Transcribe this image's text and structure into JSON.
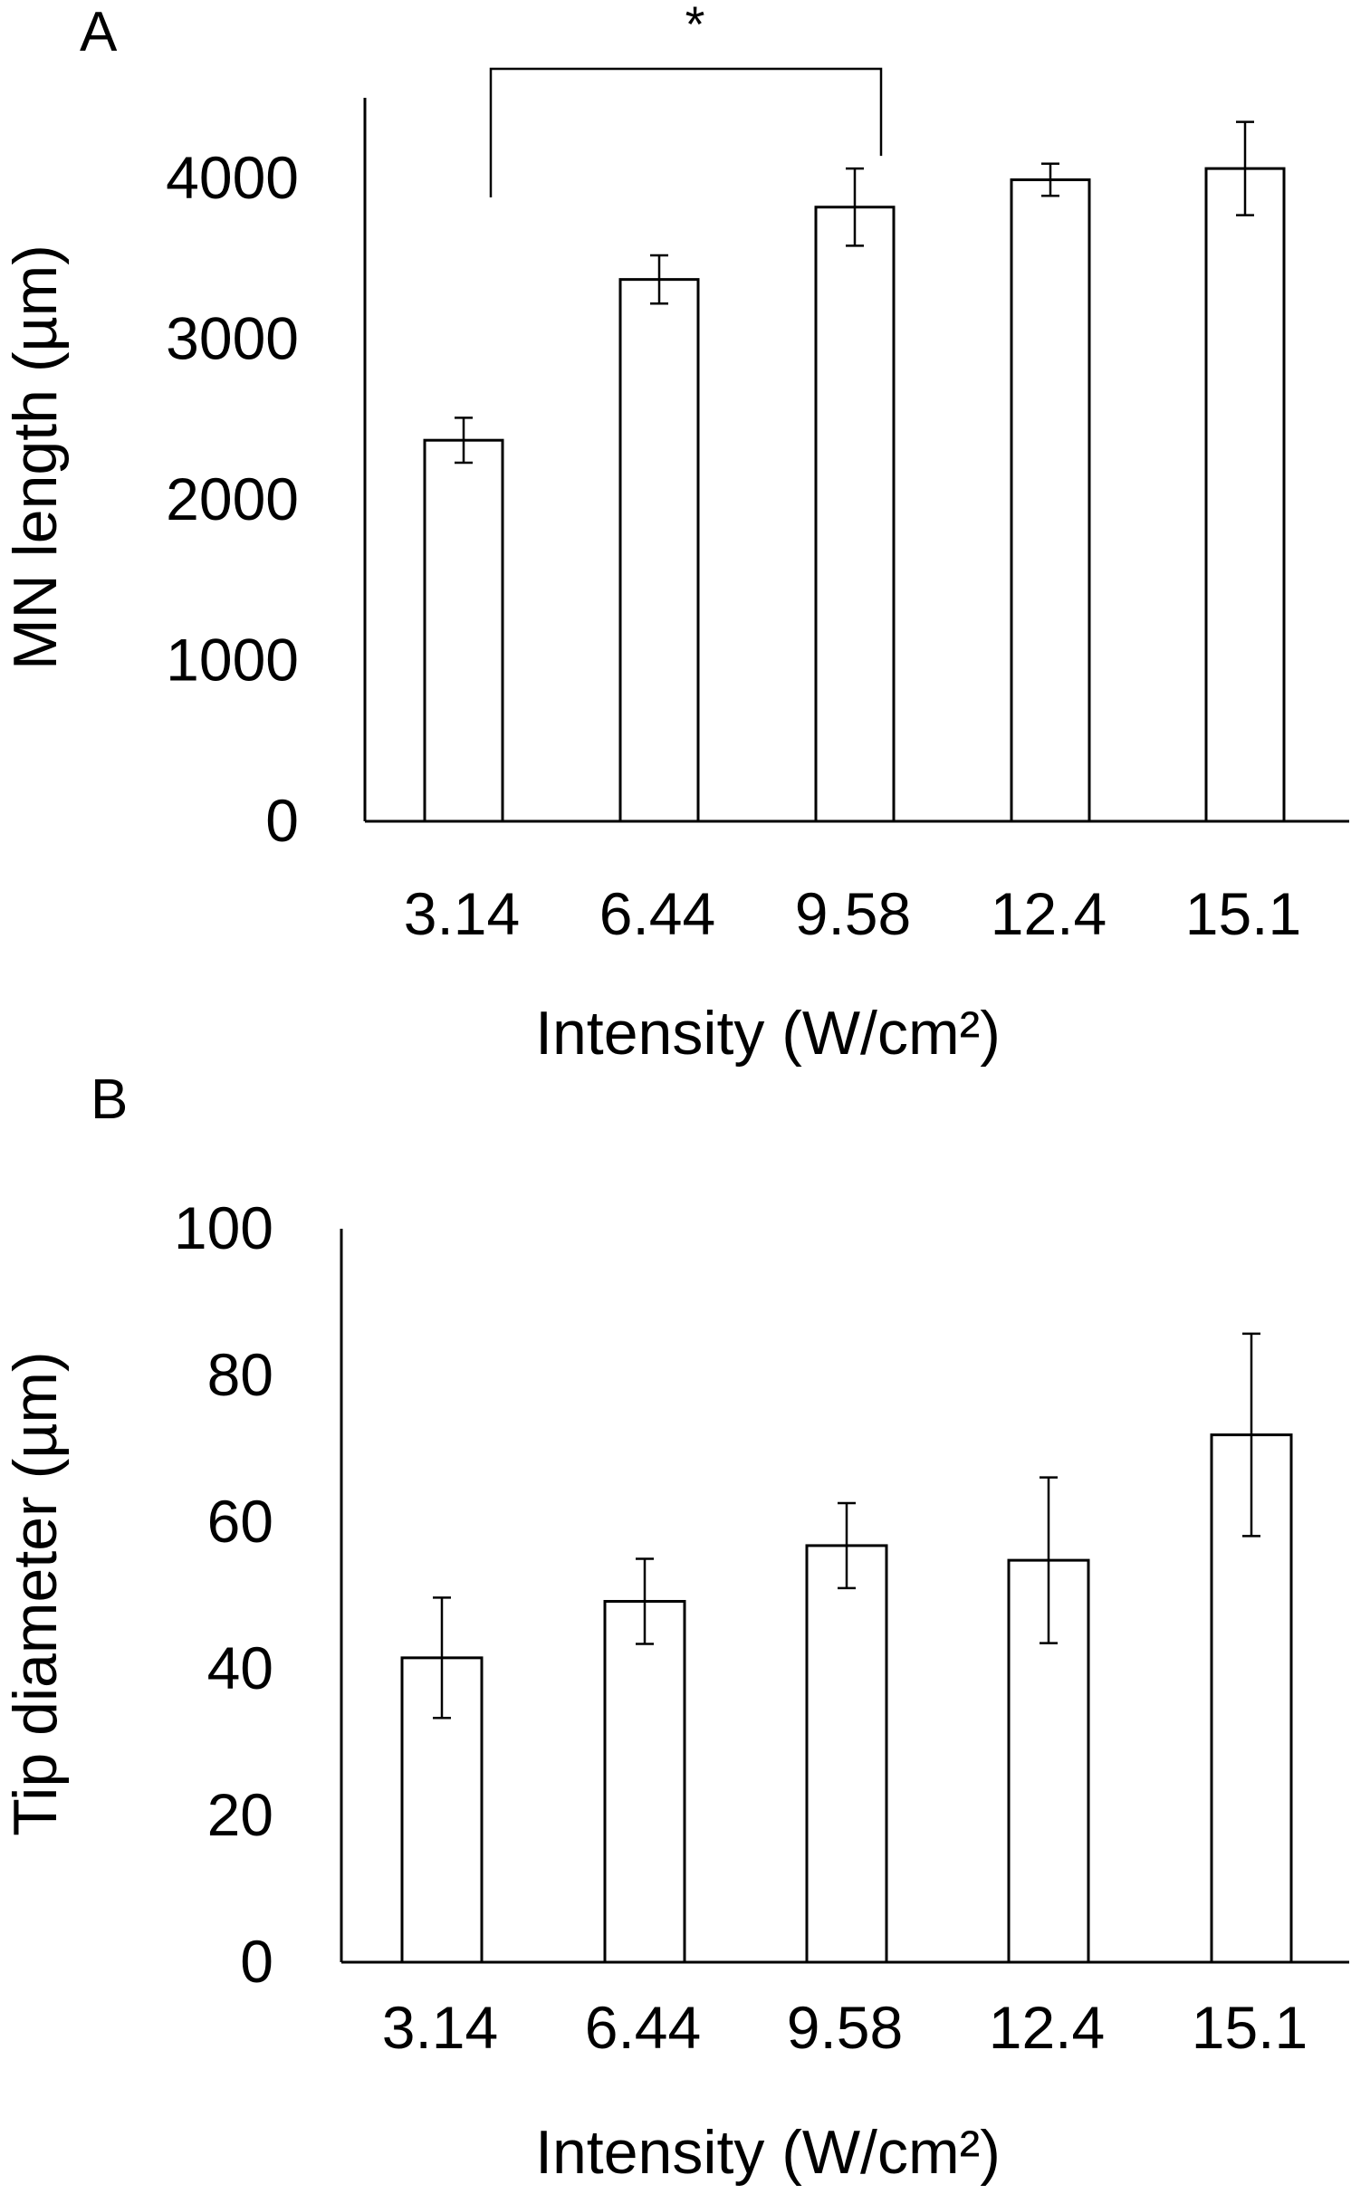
{
  "chart_data": [
    {
      "panel": "A",
      "type": "bar",
      "categories": [
        "3.14",
        "6.44",
        "9.58",
        "12.4",
        "15.1"
      ],
      "values": [
        2370,
        3370,
        3820,
        3990,
        4060
      ],
      "errors": [
        140,
        150,
        240,
        100,
        290
      ],
      "yticks": [
        "0",
        "1000",
        "2000",
        "3000",
        "4000"
      ],
      "ylim": [
        0,
        4500
      ],
      "xlabel": "Intensity (W/cm²)",
      "ylabel": "MN length (µm)",
      "grid": false,
      "legend": "none",
      "annotation": {
        "text": "*",
        "from": "3.14",
        "to": "9.58"
      },
      "colors": {
        "bar_fill": "#ffffff",
        "stroke": "#000000"
      }
    },
    {
      "panel": "B",
      "type": "bar",
      "categories": [
        "3.14",
        "6.44",
        "9.58",
        "12.4",
        "15.1"
      ],
      "values": [
        41.5,
        49.2,
        56.8,
        54.8,
        71.9
      ],
      "errors": [
        8.2,
        5.8,
        5.8,
        11.3,
        13.8
      ],
      "yticks": [
        "0",
        "20",
        "40",
        "60",
        "80",
        "100"
      ],
      "ylim": [
        0,
        100
      ],
      "xlabel": "Intensity (W/cm²)",
      "ylabel": "Tip diameter (µm)",
      "grid": false,
      "legend": "none",
      "colors": {
        "bar_fill": "#ffffff",
        "stroke": "#000000"
      }
    }
  ]
}
